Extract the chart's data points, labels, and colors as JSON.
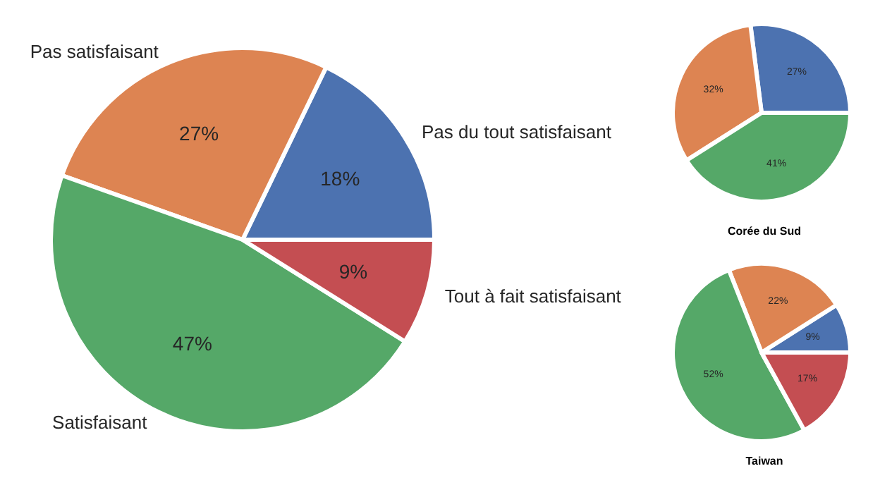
{
  "chart_data": [
    {
      "type": "pie",
      "categories": [
        "Pas du tout satisfaisant",
        "Pas satisfaisant",
        "Satisfaisant",
        "Tout à fait satisfaisant"
      ],
      "values": [
        18,
        27,
        47,
        9
      ],
      "value_labels": [
        "18%",
        "27%",
        "47%",
        "9%"
      ],
      "colors": [
        "#4c72b0",
        "#dd8452",
        "#55a868",
        "#c44e52"
      ]
    },
    {
      "type": "pie",
      "title": "Corée du Sud",
      "categories": [
        null,
        null,
        null
      ],
      "values": [
        27,
        32,
        41
      ],
      "value_labels": [
        "27%",
        "32%",
        "41%"
      ],
      "colors": [
        "#4c72b0",
        "#dd8452",
        "#55a868"
      ]
    },
    {
      "type": "pie",
      "title": "Taiwan",
      "categories": [
        null,
        null,
        null,
        null
      ],
      "values": [
        9,
        22,
        52,
        17
      ],
      "value_labels": [
        "9%",
        "22%",
        "52%",
        "17%"
      ],
      "colors": [
        "#4c72b0",
        "#dd8452",
        "#55a868",
        "#c44e52"
      ]
    }
  ]
}
